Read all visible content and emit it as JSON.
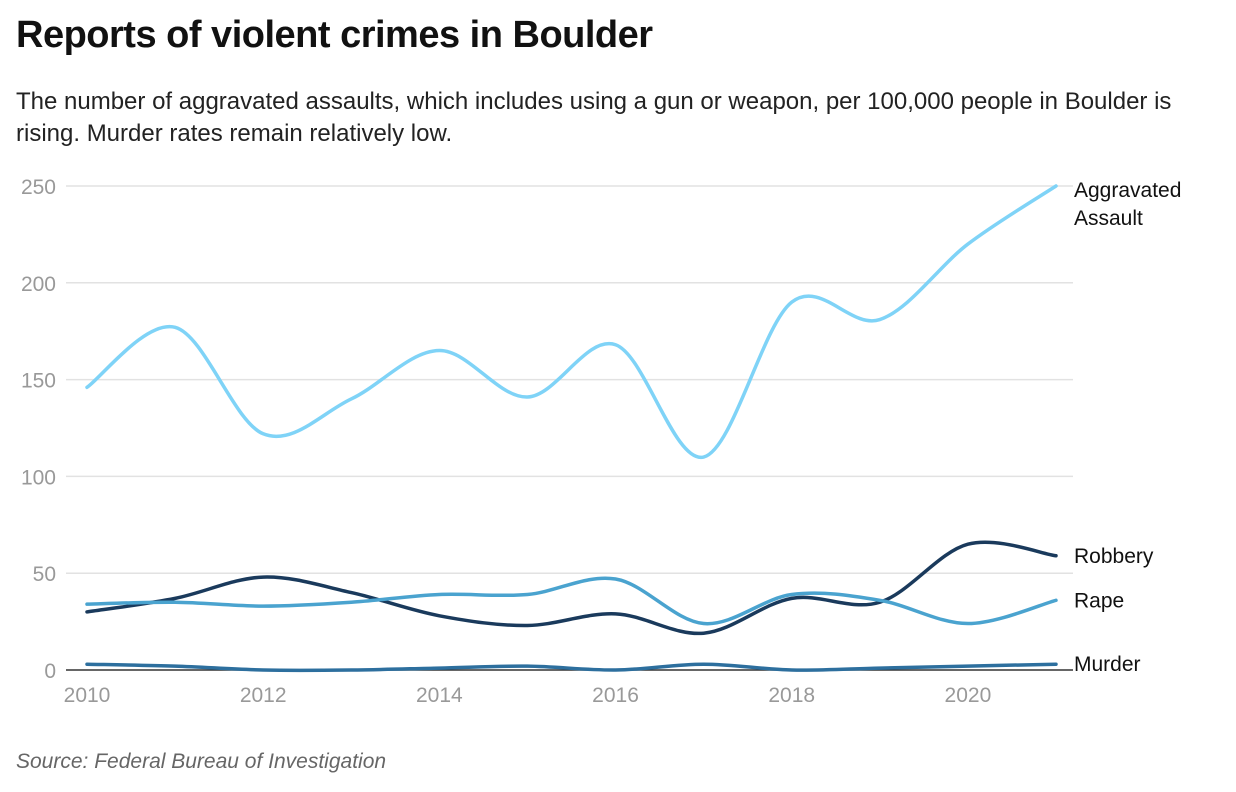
{
  "chart_data": {
    "type": "line",
    "title": "Reports of violent crimes in Boulder",
    "subtitle": "The number of aggravated assaults, which includes using a gun or weapon, per 100,000 people in Boulder is rising. Murder rates remain relatively low.",
    "xlabel": "",
    "ylabel": "",
    "x": [
      2010,
      2011,
      2012,
      2013,
      2014,
      2015,
      2016,
      2017,
      2018,
      2019,
      2020,
      2021
    ],
    "xticks": [
      2010,
      2012,
      2014,
      2016,
      2018,
      2020
    ],
    "yticks": [
      0,
      50,
      100,
      150,
      200,
      250
    ],
    "ylim": [
      0,
      250
    ],
    "grid": true,
    "legend": "direct labels at right end of lines",
    "series": [
      {
        "name": "Aggravated Assault",
        "label_lines": [
          "Aggravated",
          "Assault"
        ],
        "color": "#7fd3f7",
        "values": [
          146,
          177,
          122,
          140,
          165,
          141,
          168,
          110,
          190,
          181,
          220,
          250
        ]
      },
      {
        "name": "Robbery",
        "label_lines": [
          "Robbery"
        ],
        "color": "#1a3a5c",
        "values": [
          30,
          37,
          48,
          40,
          28,
          23,
          29,
          19,
          37,
          35,
          65,
          59
        ]
      },
      {
        "name": "Rape",
        "label_lines": [
          "Rape"
        ],
        "color": "#4aa3cf",
        "values": [
          34,
          35,
          33,
          35,
          39,
          39,
          47,
          24,
          39,
          36,
          24,
          36
        ]
      },
      {
        "name": "Murder",
        "label_lines": [
          "Murder"
        ],
        "color": "#2d6f9e",
        "values": [
          3,
          2,
          0,
          0,
          1,
          2,
          0,
          3,
          0,
          1,
          2,
          3
        ]
      }
    ]
  },
  "source": "Source: Federal Bureau of Investigation"
}
